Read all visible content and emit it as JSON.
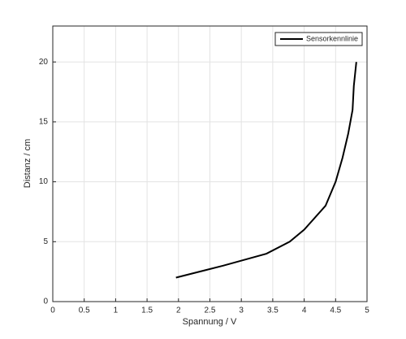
{
  "chart_data": {
    "type": "line",
    "x_label": "Spannung / V",
    "y_label": "Distanz / cm",
    "series": [
      {
        "name": "Sensorkennlinie",
        "color": "#000000",
        "x": [
          1.96,
          2.71,
          3.4,
          3.77,
          4.0,
          4.34,
          4.5,
          4.61,
          4.7,
          4.77,
          4.79,
          4.83
        ],
        "values": [
          2,
          3,
          4,
          5,
          6,
          8,
          10,
          12,
          14,
          16,
          18,
          20
        ]
      }
    ],
    "xlim": [
      0,
      5
    ],
    "xticks": [
      0,
      0.5,
      1,
      1.5,
      2,
      2.5,
      3,
      3.5,
      4,
      4.5,
      5
    ],
    "ylim": [
      0,
      23
    ],
    "yticks": [
      0,
      5,
      10,
      15,
      20
    ],
    "grid": true,
    "legend": "northeast"
  }
}
